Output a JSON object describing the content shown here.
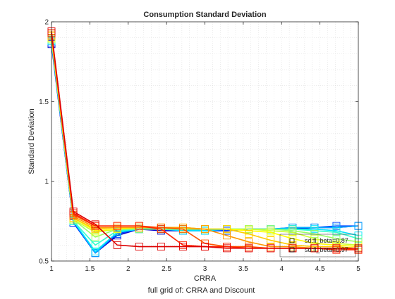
{
  "chart_data": {
    "type": "line",
    "title": "Consumption Standard Deviation",
    "xlabel": "CRRA",
    "ylabel": "Standard Deviation",
    "footer": "full grid of: CRRA and Discount",
    "xlim": [
      1,
      5
    ],
    "ylim": [
      0.5,
      2
    ],
    "xticks": [
      1,
      1.5,
      2,
      2.5,
      3,
      3.5,
      4,
      4.5,
      5
    ],
    "xtick_labels": [
      "1",
      "1.5",
      "2",
      "2.5",
      "3",
      "3.5",
      "4",
      "4.5",
      "5"
    ],
    "yticks": [
      0.5,
      1,
      1.5,
      2
    ],
    "ytick_labels": [
      "0.5",
      "1",
      "1.5",
      "2"
    ],
    "grid": "on",
    "legend_position": "bottom-right",
    "x": [
      1,
      1.2857,
      1.5714,
      1.8571,
      2.1429,
      2.4286,
      2.7143,
      3,
      3.2857,
      3.5714,
      3.8571,
      4.1429,
      4.4286,
      4.7143,
      5
    ],
    "series": [
      {
        "name": "sd:fl_beta=0.87",
        "color": "#0000cc",
        "values": [
          1.86,
          0.74,
          0.55,
          0.66,
          0.7,
          0.69,
          0.69,
          0.69,
          0.69,
          0.7,
          0.7,
          0.7,
          0.71,
          0.71,
          0.72
        ]
      },
      {
        "name": "",
        "color": "#0044ff",
        "values": [
          1.87,
          0.74,
          0.55,
          0.67,
          0.7,
          0.7,
          0.69,
          0.69,
          0.69,
          0.7,
          0.7,
          0.71,
          0.71,
          0.72,
          0.72
        ]
      },
      {
        "name": "",
        "color": "#00aaff",
        "values": [
          1.88,
          0.75,
          0.55,
          0.68,
          0.71,
          0.7,
          0.7,
          0.69,
          0.7,
          0.7,
          0.7,
          0.71,
          0.71,
          0.71,
          0.72
        ]
      },
      {
        "name": "",
        "color": "#00e5ff",
        "values": [
          1.88,
          0.75,
          0.56,
          0.68,
          0.7,
          0.7,
          0.69,
          0.69,
          0.7,
          0.7,
          0.7,
          0.7,
          0.7,
          0.69,
          0.66
        ]
      },
      {
        "name": "",
        "color": "#33ffcc",
        "values": [
          1.89,
          0.75,
          0.6,
          0.69,
          0.7,
          0.7,
          0.7,
          0.7,
          0.7,
          0.7,
          0.7,
          0.7,
          0.69,
          0.68,
          0.64
        ]
      },
      {
        "name": "",
        "color": "#99ff66",
        "values": [
          1.89,
          0.76,
          0.65,
          0.7,
          0.7,
          0.7,
          0.7,
          0.7,
          0.7,
          0.7,
          0.7,
          0.69,
          0.67,
          0.64,
          0.62
        ]
      },
      {
        "name": "",
        "color": "#ccff33",
        "values": [
          1.9,
          0.76,
          0.68,
          0.7,
          0.71,
          0.71,
          0.7,
          0.7,
          0.7,
          0.7,
          0.69,
          0.68,
          0.64,
          0.61,
          0.6
        ]
      },
      {
        "name": "",
        "color": "#ffff00",
        "values": [
          1.9,
          0.77,
          0.69,
          0.7,
          0.71,
          0.71,
          0.71,
          0.7,
          0.7,
          0.69,
          0.68,
          0.64,
          0.61,
          0.6,
          0.59
        ]
      },
      {
        "name": "",
        "color": "#ffcc00",
        "values": [
          1.91,
          0.77,
          0.7,
          0.71,
          0.71,
          0.71,
          0.71,
          0.7,
          0.7,
          0.67,
          0.63,
          0.6,
          0.59,
          0.59,
          0.58
        ]
      },
      {
        "name": "",
        "color": "#ff9900",
        "values": [
          1.92,
          0.78,
          0.71,
          0.71,
          0.71,
          0.71,
          0.71,
          0.7,
          0.66,
          0.62,
          0.59,
          0.59,
          0.58,
          0.58,
          0.58
        ]
      },
      {
        "name": "",
        "color": "#ff5500",
        "values": [
          1.93,
          0.79,
          0.72,
          0.72,
          0.72,
          0.71,
          0.7,
          0.61,
          0.59,
          0.59,
          0.58,
          0.58,
          0.58,
          0.58,
          0.57
        ]
      },
      {
        "name": "",
        "color": "#ff2200",
        "values": [
          1.93,
          0.8,
          0.72,
          0.72,
          0.72,
          0.7,
          0.6,
          0.59,
          0.59,
          0.58,
          0.58,
          0.58,
          0.58,
          0.57,
          0.57
        ]
      },
      {
        "name": "sd:fl_beta=0.97",
        "color": "#dd0000",
        "values": [
          1.94,
          0.81,
          0.73,
          0.6,
          0.59,
          0.59,
          0.59,
          0.59,
          0.58,
          0.58,
          0.58,
          0.58,
          0.58,
          0.58,
          0.58
        ]
      }
    ]
  }
}
